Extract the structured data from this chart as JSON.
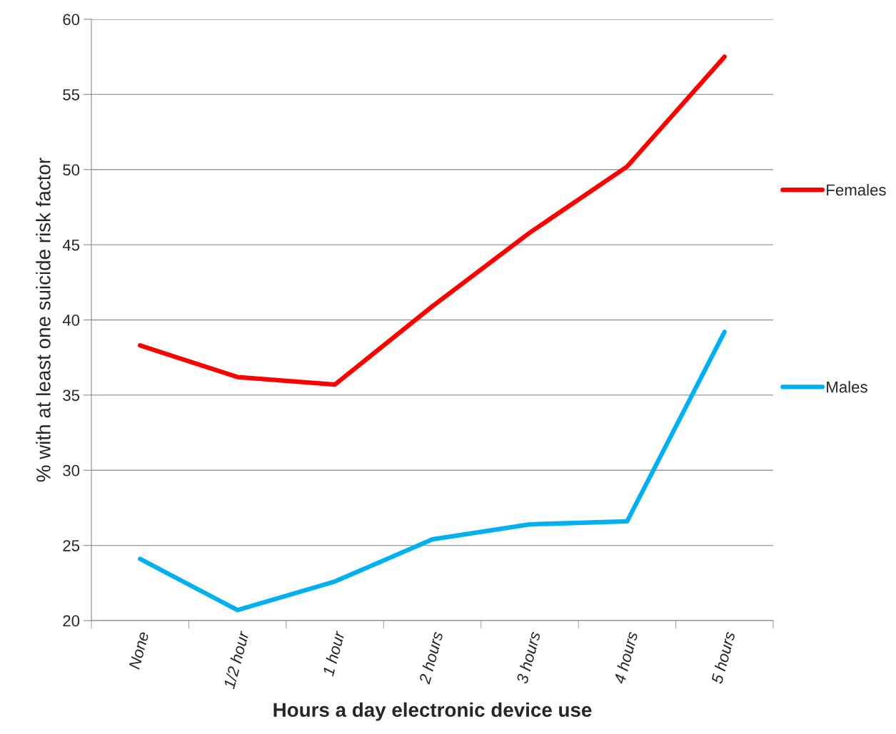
{
  "chart_data": {
    "type": "line",
    "xlabel": "Hours a day electronic device use",
    "ylabel": "% with at least one suicide risk factor",
    "categories": [
      "None",
      "1/2 hour",
      "1 hour",
      "2 hours",
      "3 hours",
      "4 hours",
      "5 hours"
    ],
    "series": [
      {
        "name": "Females",
        "color": "#ff0000",
        "values": [
          38.3,
          36.2,
          35.7,
          40.9,
          45.8,
          50.2,
          57.5
        ]
      },
      {
        "name": "Males",
        "color": "#00b0f0",
        "values": [
          24.1,
          20.7,
          22.6,
          25.4,
          26.4,
          26.6,
          39.2
        ]
      }
    ],
    "ylim": [
      20,
      60
    ],
    "yticks": [
      20,
      25,
      30,
      35,
      40,
      45,
      50,
      55,
      60
    ],
    "grid": "y",
    "legend": "right",
    "marker": "none",
    "line_style": "solid"
  }
}
